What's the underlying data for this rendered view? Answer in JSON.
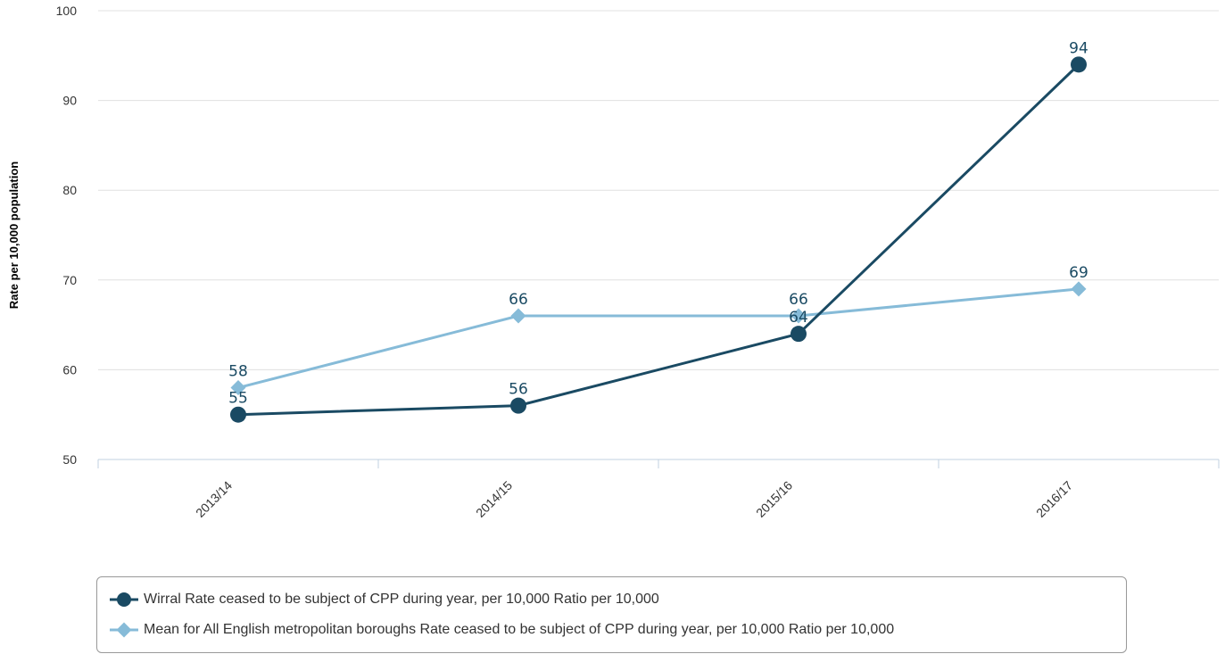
{
  "chart_data": {
    "type": "line",
    "categories": [
      "2013/14",
      "2014/15",
      "2015/16",
      "2016/17"
    ],
    "ylabel": "Rate per 10,000 population",
    "ylim": [
      50,
      100
    ],
    "yticks": [
      50,
      60,
      70,
      80,
      90,
      100
    ],
    "grid": true,
    "legend_position": "bottom",
    "series": [
      {
        "name": "Wirral Rate ceased to be subject of CPP during year, per 10,000 Ratio per 10,000",
        "values": [
          55,
          56,
          64,
          94
        ],
        "labels": [
          "55",
          "56",
          "64",
          "94"
        ],
        "color": "#1a4a63",
        "marker": "circle"
      },
      {
        "name": "Mean for All English metropolitan boroughs Rate ceased to be subject of CPP during year, per 10,000 Ratio per 10,000",
        "values": [
          58,
          66,
          66,
          69
        ],
        "labels": [
          "58",
          "66",
          "66",
          "69"
        ],
        "color": "#86bbd8",
        "marker": "diamond"
      }
    ]
  }
}
